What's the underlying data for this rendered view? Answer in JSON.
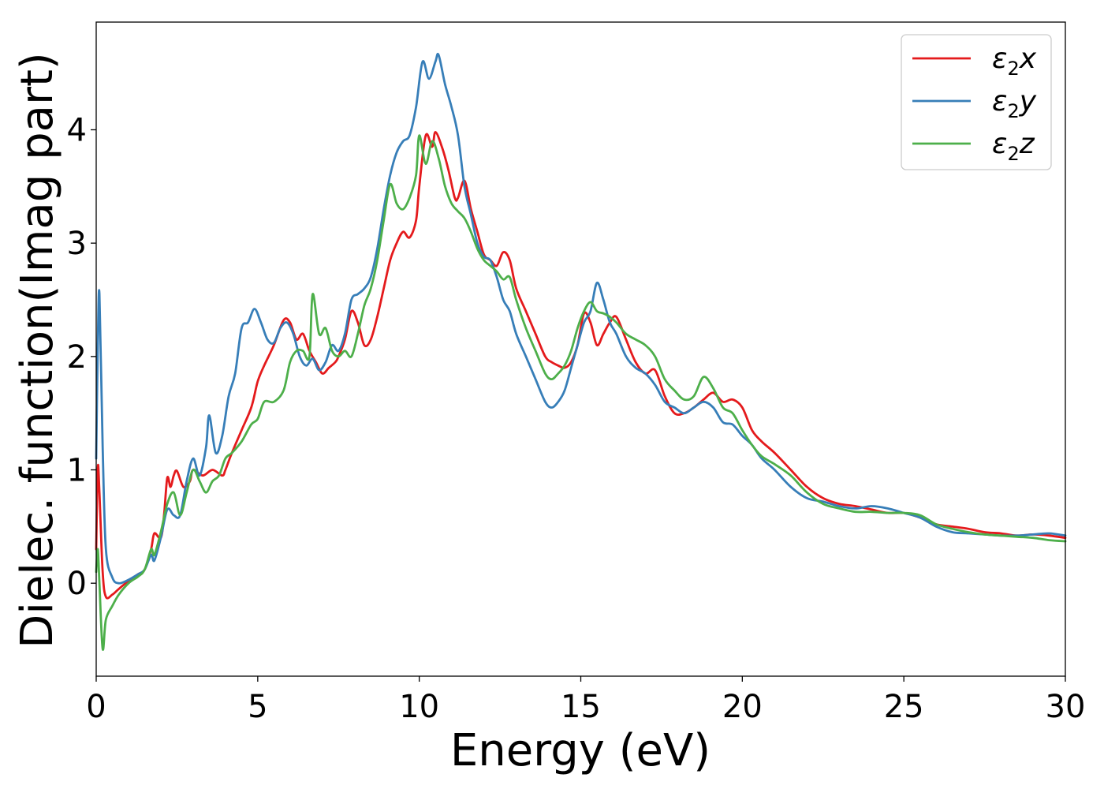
{
  "chart_data": {
    "type": "line",
    "title": "",
    "xlabel": "Energy (eV)",
    "ylabel": "Dielec. function(Imag part)",
    "xlim": [
      0,
      30
    ],
    "ylim": [
      -0.82,
      4.95
    ],
    "xticks": [
      0,
      5,
      10,
      15,
      20,
      25,
      30
    ],
    "yticks": [
      0,
      1,
      2,
      3,
      4
    ],
    "grid": false,
    "legend_position": "top-right",
    "series": [
      {
        "name": "ε2x",
        "legend": {
          "base": "ε",
          "sub": "2",
          "suffix": "x"
        },
        "color": "#e41a1c",
        "x": [
          0,
          0.05,
          0.1,
          0.2,
          0.3,
          0.5,
          0.7,
          1.0,
          1.3,
          1.5,
          1.7,
          1.8,
          2.0,
          2.1,
          2.2,
          2.3,
          2.4,
          2.5,
          2.7,
          2.9,
          3.0,
          3.3,
          3.6,
          3.9,
          4.0,
          4.2,
          4.5,
          4.8,
          5.0,
          5.2,
          5.5,
          5.8,
          6.0,
          6.2,
          6.4,
          6.6,
          6.8,
          7.0,
          7.2,
          7.4,
          7.5,
          7.7,
          7.9,
          8.1,
          8.3,
          8.5,
          8.7,
          8.9,
          9.1,
          9.3,
          9.5,
          9.7,
          9.9,
          10.0,
          10.2,
          10.4,
          10.5,
          10.7,
          10.9,
          11.1,
          11.2,
          11.4,
          11.6,
          11.8,
          12.0,
          12.2,
          12.4,
          12.6,
          12.8,
          13.0,
          13.3,
          13.6,
          13.9,
          14.1,
          14.3,
          14.5,
          14.7,
          14.9,
          15.1,
          15.3,
          15.5,
          15.7,
          15.9,
          16.1,
          16.4,
          16.7,
          17.0,
          17.3,
          17.6,
          17.9,
          18.2,
          18.5,
          18.8,
          19.1,
          19.4,
          19.7,
          20.0,
          20.3,
          20.6,
          21.0,
          21.5,
          22.0,
          22.5,
          23.0,
          23.5,
          24.0,
          24.5,
          25.0,
          25.5,
          26.0,
          26.5,
          27.0,
          27.5,
          28.0,
          28.5,
          29.0,
          29.5,
          30.0
        ],
        "y": [
          0.3,
          1.02,
          0.8,
          0.1,
          -0.12,
          -0.1,
          -0.05,
          0.02,
          0.08,
          0.12,
          0.3,
          0.44,
          0.4,
          0.6,
          0.93,
          0.85,
          0.95,
          0.99,
          0.85,
          0.9,
          1.0,
          0.95,
          1.0,
          0.95,
          1.0,
          1.15,
          1.35,
          1.55,
          1.78,
          1.92,
          2.1,
          2.32,
          2.3,
          2.15,
          2.2,
          2.05,
          1.95,
          1.85,
          1.9,
          1.95,
          2.0,
          2.15,
          2.4,
          2.3,
          2.1,
          2.15,
          2.35,
          2.6,
          2.85,
          3.0,
          3.1,
          3.05,
          3.2,
          3.5,
          3.95,
          3.85,
          3.98,
          3.85,
          3.65,
          3.4,
          3.4,
          3.55,
          3.3,
          3.1,
          2.9,
          2.85,
          2.8,
          2.92,
          2.85,
          2.6,
          2.4,
          2.2,
          2.0,
          1.95,
          1.92,
          1.9,
          1.95,
          2.1,
          2.38,
          2.3,
          2.1,
          2.2,
          2.3,
          2.35,
          2.15,
          1.95,
          1.85,
          1.88,
          1.65,
          1.5,
          1.5,
          1.55,
          1.62,
          1.68,
          1.6,
          1.62,
          1.55,
          1.35,
          1.25,
          1.15,
          1.0,
          0.85,
          0.75,
          0.7,
          0.68,
          0.65,
          0.62,
          0.62,
          0.58,
          0.52,
          0.5,
          0.48,
          0.45,
          0.44,
          0.42,
          0.43,
          0.42,
          0.4
        ]
      },
      {
        "name": "ε2y",
        "legend": {
          "base": "ε",
          "sub": "2",
          "suffix": "y"
        },
        "color": "#377eb8",
        "x": [
          0,
          0.05,
          0.1,
          0.2,
          0.3,
          0.5,
          0.7,
          1.0,
          1.3,
          1.5,
          1.7,
          1.8,
          2.0,
          2.2,
          2.4,
          2.6,
          2.8,
          3.0,
          3.2,
          3.4,
          3.5,
          3.7,
          3.9,
          4.1,
          4.3,
          4.5,
          4.7,
          4.9,
          5.1,
          5.3,
          5.5,
          5.7,
          5.9,
          6.1,
          6.3,
          6.5,
          6.7,
          6.9,
          7.1,
          7.3,
          7.5,
          7.7,
          7.9,
          8.1,
          8.3,
          8.5,
          8.7,
          8.9,
          9.1,
          9.3,
          9.5,
          9.7,
          9.9,
          10.1,
          10.3,
          10.5,
          10.6,
          10.8,
          11.0,
          11.2,
          11.4,
          11.6,
          11.8,
          12.0,
          12.2,
          12.4,
          12.6,
          12.8,
          13.0,
          13.3,
          13.6,
          13.9,
          14.1,
          14.3,
          14.5,
          14.7,
          14.9,
          15.1,
          15.3,
          15.5,
          15.7,
          15.9,
          16.1,
          16.4,
          16.7,
          17.0,
          17.3,
          17.6,
          17.9,
          18.2,
          18.5,
          18.8,
          19.1,
          19.4,
          19.7,
          20.0,
          20.3,
          20.6,
          21.0,
          21.5,
          22.0,
          22.5,
          23.0,
          23.5,
          24.0,
          24.5,
          25.0,
          25.5,
          26.0,
          26.5,
          27.0,
          27.5,
          28.0,
          28.5,
          29.0,
          29.5,
          30.0
        ],
        "y": [
          1.1,
          2.1,
          2.55,
          1.2,
          0.3,
          0.05,
          0.0,
          0.03,
          0.08,
          0.12,
          0.25,
          0.2,
          0.4,
          0.65,
          0.6,
          0.6,
          0.9,
          1.1,
          0.95,
          1.2,
          1.48,
          1.15,
          1.3,
          1.65,
          1.85,
          2.25,
          2.3,
          2.42,
          2.3,
          2.15,
          2.12,
          2.25,
          2.3,
          2.2,
          2.0,
          1.92,
          1.98,
          1.88,
          1.95,
          2.1,
          2.05,
          2.2,
          2.5,
          2.55,
          2.6,
          2.7,
          2.95,
          3.3,
          3.6,
          3.8,
          3.9,
          3.95,
          4.2,
          4.6,
          4.45,
          4.6,
          4.66,
          4.4,
          4.2,
          3.95,
          3.5,
          3.25,
          3.0,
          2.88,
          2.85,
          2.7,
          2.5,
          2.4,
          2.2,
          2.0,
          1.8,
          1.6,
          1.55,
          1.6,
          1.7,
          1.9,
          2.1,
          2.3,
          2.4,
          2.65,
          2.5,
          2.3,
          2.2,
          2.0,
          1.9,
          1.85,
          1.75,
          1.6,
          1.55,
          1.5,
          1.55,
          1.6,
          1.55,
          1.42,
          1.4,
          1.3,
          1.22,
          1.1,
          1.0,
          0.85,
          0.75,
          0.72,
          0.68,
          0.66,
          0.68,
          0.66,
          0.62,
          0.58,
          0.5,
          0.45,
          0.44,
          0.43,
          0.42,
          0.42,
          0.43,
          0.44,
          0.42
        ]
      },
      {
        "name": "ε2z",
        "legend": {
          "base": "ε",
          "sub": "2",
          "suffix": "z"
        },
        "color": "#4daf4a",
        "x": [
          0,
          0.05,
          0.1,
          0.2,
          0.3,
          0.5,
          0.7,
          1.0,
          1.3,
          1.5,
          1.7,
          1.8,
          2.0,
          2.2,
          2.4,
          2.6,
          2.8,
          3.0,
          3.2,
          3.4,
          3.6,
          3.8,
          4.0,
          4.2,
          4.5,
          4.8,
          5.0,
          5.2,
          5.5,
          5.8,
          6.0,
          6.2,
          6.4,
          6.6,
          6.7,
          6.9,
          7.1,
          7.3,
          7.5,
          7.7,
          7.9,
          8.1,
          8.3,
          8.5,
          8.7,
          8.9,
          9.1,
          9.3,
          9.5,
          9.7,
          9.9,
          10.0,
          10.2,
          10.4,
          10.6,
          10.8,
          11.0,
          11.2,
          11.4,
          11.6,
          11.8,
          12.0,
          12.2,
          12.4,
          12.6,
          12.8,
          13.0,
          13.3,
          13.6,
          13.9,
          14.1,
          14.3,
          14.5,
          14.7,
          14.9,
          15.1,
          15.3,
          15.5,
          15.7,
          15.9,
          16.1,
          16.4,
          16.7,
          17.0,
          17.3,
          17.6,
          17.9,
          18.2,
          18.5,
          18.8,
          19.1,
          19.4,
          19.7,
          20.0,
          20.3,
          20.6,
          21.0,
          21.5,
          22.0,
          22.5,
          23.0,
          23.5,
          24.0,
          24.5,
          25.0,
          25.5,
          26.0,
          26.5,
          27.0,
          27.5,
          28.0,
          28.5,
          29.0,
          29.5,
          30.0
        ],
        "y": [
          0.1,
          0.3,
          0.0,
          -0.58,
          -0.32,
          -0.2,
          -0.1,
          0.0,
          0.06,
          0.12,
          0.3,
          0.25,
          0.45,
          0.7,
          0.8,
          0.6,
          0.8,
          1.0,
          0.9,
          0.8,
          0.9,
          0.95,
          1.1,
          1.15,
          1.25,
          1.4,
          1.45,
          1.6,
          1.6,
          1.7,
          1.95,
          2.05,
          2.05,
          2.0,
          2.55,
          2.2,
          2.25,
          2.05,
          2.0,
          2.05,
          2.0,
          2.2,
          2.45,
          2.6,
          2.85,
          3.2,
          3.52,
          3.35,
          3.3,
          3.4,
          3.6,
          3.95,
          3.7,
          3.9,
          3.75,
          3.5,
          3.35,
          3.28,
          3.22,
          3.1,
          2.95,
          2.85,
          2.8,
          2.75,
          2.68,
          2.7,
          2.5,
          2.25,
          2.05,
          1.85,
          1.8,
          1.85,
          1.92,
          2.05,
          2.25,
          2.4,
          2.48,
          2.4,
          2.38,
          2.35,
          2.3,
          2.2,
          2.15,
          2.1,
          2.0,
          1.8,
          1.7,
          1.62,
          1.65,
          1.82,
          1.72,
          1.55,
          1.5,
          1.35,
          1.22,
          1.12,
          1.05,
          0.95,
          0.8,
          0.7,
          0.66,
          0.63,
          0.63,
          0.62,
          0.62,
          0.6,
          0.52,
          0.48,
          0.45,
          0.43,
          0.42,
          0.41,
          0.4,
          0.38,
          0.37
        ]
      }
    ]
  }
}
